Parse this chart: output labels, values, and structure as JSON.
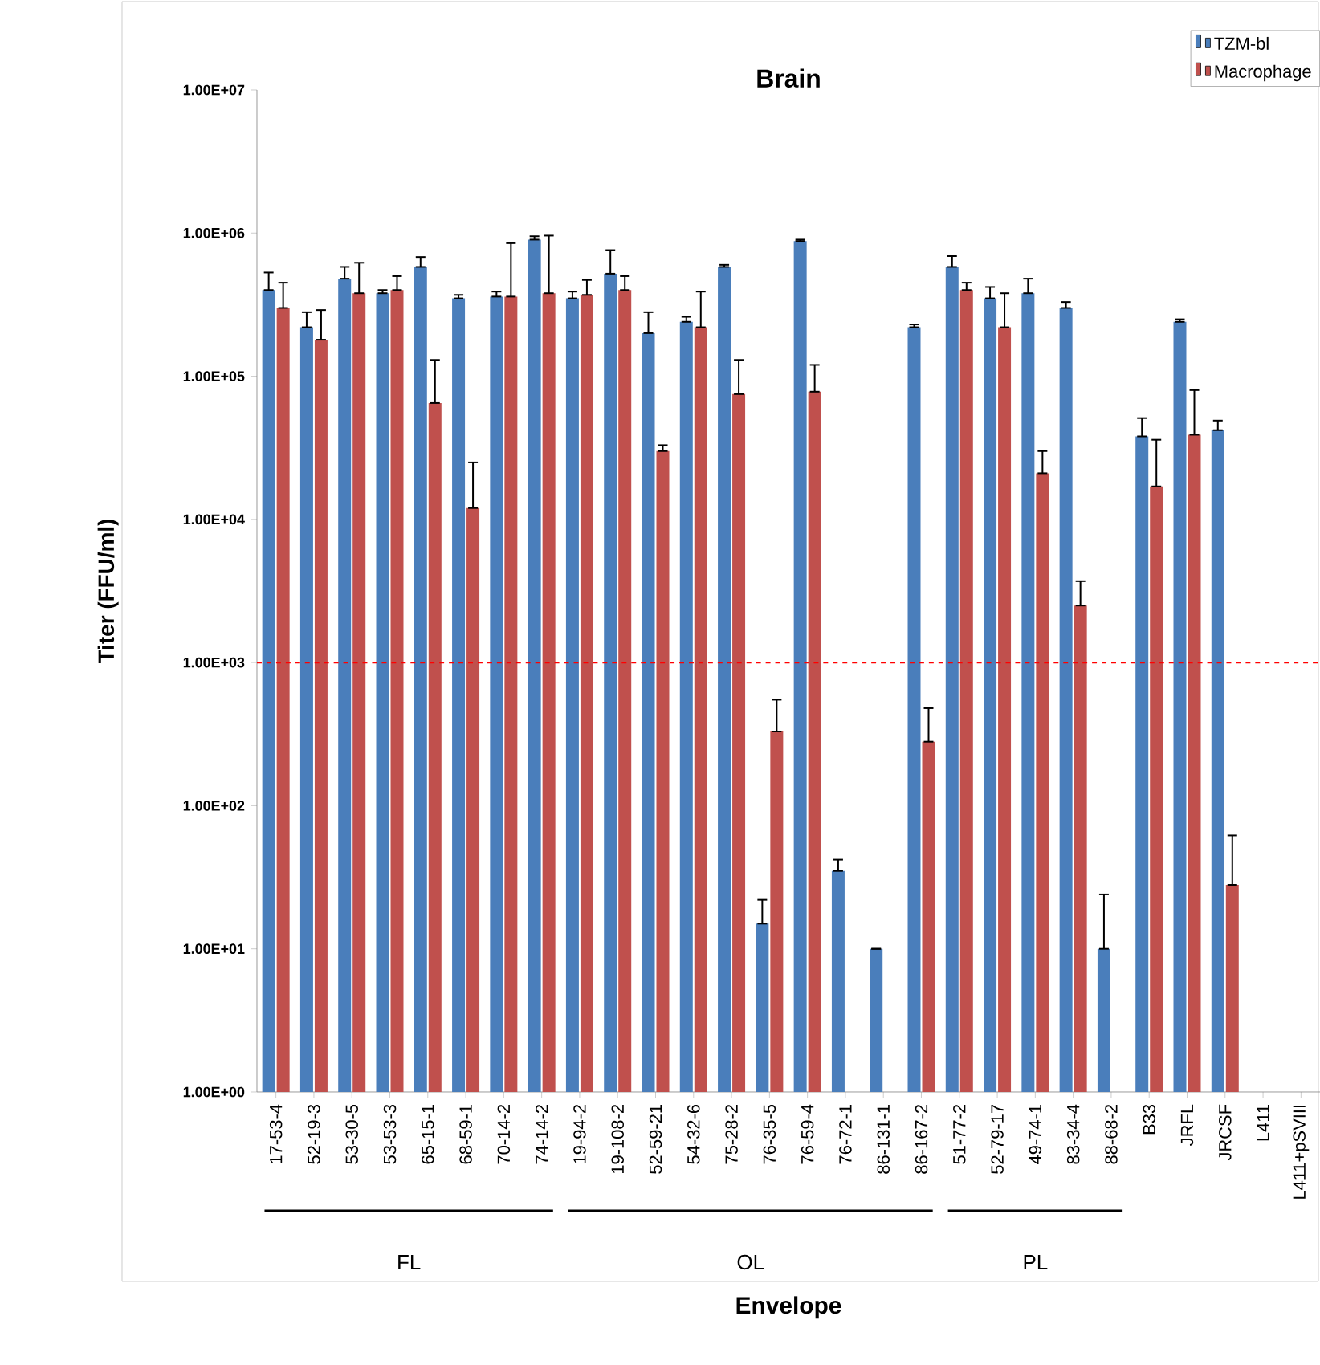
{
  "chart_data": {
    "type": "bar",
    "title": "Brain",
    "xlabel": "Envelope",
    "ylabel": "Titer (FFU/ml)",
    "categories": [
      "17-53-4",
      "52-19-3",
      "53-30-5",
      "53-53-3",
      "65-15-1",
      "68-59-1",
      "70-14-2",
      "74-14-2",
      "19-94-2",
      "19-108-2",
      "52-59-21",
      "54-32-6",
      "75-28-2",
      "76-35-5",
      "76-59-4",
      "76-72-1",
      "86-131-1",
      "86-167-2",
      "51-77-2",
      "52-79-17",
      "49-74-1",
      "83-34-4",
      "88-68-2",
      "B33",
      "JRFL",
      "JRCSF",
      "L411",
      "L411+pSVIII"
    ],
    "series": [
      {
        "name": "TZM-bl",
        "color": "#4a7ebb",
        "values": [
          400000,
          220000,
          480000,
          380000,
          580000,
          350000,
          360000,
          900000,
          350000,
          520000,
          200000,
          240000,
          580000,
          15,
          880000,
          35,
          10,
          220000,
          580000,
          350000,
          380000,
          300000,
          10,
          38000,
          240000,
          42000,
          null,
          null
        ],
        "errors": [
          [
            400000,
            530000
          ],
          [
            220000,
            280000
          ],
          [
            480000,
            580000
          ],
          [
            380000,
            400000
          ],
          [
            580000,
            680000
          ],
          [
            350000,
            370000
          ],
          [
            360000,
            390000
          ],
          [
            900000,
            950000
          ],
          [
            350000,
            390000
          ],
          [
            520000,
            760000
          ],
          [
            200000,
            280000
          ],
          [
            240000,
            260000
          ],
          [
            580000,
            600000
          ],
          [
            15,
            22
          ],
          [
            880000,
            900000
          ],
          [
            35,
            42
          ],
          [
            10,
            10
          ],
          [
            220000,
            230000
          ],
          [
            580000,
            690000
          ],
          [
            350000,
            420000
          ],
          [
            380000,
            480000
          ],
          [
            300000,
            330000
          ],
          [
            10,
            24
          ],
          [
            38000,
            51000
          ],
          [
            240000,
            250000
          ],
          [
            42000,
            49000
          ],
          null,
          null
        ]
      },
      {
        "name": "Macrophage",
        "color": "#c0504d",
        "values": [
          300000,
          180000,
          380000,
          400000,
          65000,
          12000,
          360000,
          380000,
          370000,
          400000,
          30000,
          220000,
          75000,
          330,
          78000,
          null,
          null,
          280,
          400000,
          220000,
          21000,
          2500,
          null,
          17000,
          39000,
          28,
          null,
          null
        ],
        "errors": [
          [
            300000,
            450000
          ],
          [
            180000,
            290000
          ],
          [
            380000,
            620000
          ],
          [
            400000,
            500000
          ],
          [
            65000,
            130000
          ],
          [
            12000,
            25000
          ],
          [
            360000,
            850000
          ],
          [
            380000,
            960000
          ],
          [
            370000,
            470000
          ],
          [
            400000,
            500000
          ],
          [
            30000,
            33000
          ],
          [
            220000,
            390000
          ],
          [
            75000,
            130000
          ],
          [
            330,
            550
          ],
          [
            78000,
            120000
          ],
          null,
          null,
          [
            280,
            480
          ],
          [
            400000,
            450000
          ],
          [
            220000,
            380000
          ],
          [
            21000,
            30000
          ],
          [
            2500,
            3700
          ],
          null,
          [
            17000,
            36000
          ],
          [
            39000,
            80000
          ],
          [
            28,
            62
          ],
          null,
          null
        ]
      }
    ],
    "log": "y",
    "ylim": [
      1,
      10000000
    ],
    "yticks": [
      {
        "value": 1,
        "label": "1.00E+00"
      },
      {
        "value": 10,
        "label": "1.00E+01"
      },
      {
        "value": 100,
        "label": "1.00E+02"
      },
      {
        "value": 1000,
        "label": "1.00E+03"
      },
      {
        "value": 10000,
        "label": "1.00E+04"
      },
      {
        "value": 100000,
        "label": "1.00E+05"
      },
      {
        "value": 1000000,
        "label": "1.00E+06"
      },
      {
        "value": 10000000,
        "label": "1.00E+07"
      }
    ],
    "ref_lines": [
      {
        "axis": "y",
        "value": 1000,
        "color": "#ff0000",
        "line_style": "dashed"
      }
    ],
    "annotations": [
      "FL",
      "OL",
      "PL"
    ],
    "legend": "top right",
    "grid": false
  }
}
